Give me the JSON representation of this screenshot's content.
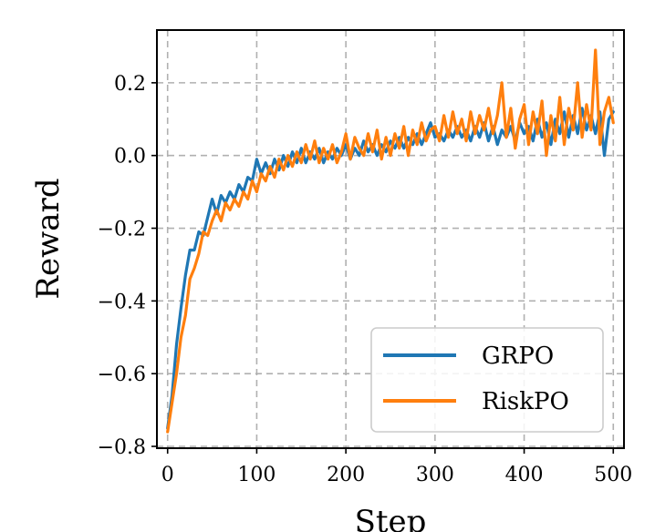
{
  "chart_data": {
    "type": "line",
    "title": "",
    "xlabel": "Step",
    "ylabel": "Reward",
    "xlim": [
      -12,
      512
    ],
    "ylim": [
      -0.805,
      0.345
    ],
    "xticks": [
      0,
      100,
      200,
      300,
      400,
      500
    ],
    "yticks": [
      -0.8,
      -0.6,
      -0.4,
      -0.2,
      0.0,
      0.2
    ],
    "xtick_labels": [
      "0",
      "100",
      "200",
      "300",
      "400",
      "500"
    ],
    "ytick_labels": [
      "−0.8",
      "−0.6",
      "−0.4",
      "−0.2",
      "0.0",
      "0.2"
    ],
    "grid": true,
    "legend_position": "bottom-right",
    "series": [
      {
        "name": "GRPO",
        "color": "#1f77b4",
        "points": [
          [
            0,
            -0.75
          ],
          [
            5,
            -0.66
          ],
          [
            10,
            -0.52
          ],
          [
            15,
            -0.42
          ],
          [
            20,
            -0.33
          ],
          [
            25,
            -0.26
          ],
          [
            30,
            -0.26
          ],
          [
            35,
            -0.21
          ],
          [
            40,
            -0.22
          ],
          [
            45,
            -0.17
          ],
          [
            50,
            -0.12
          ],
          [
            55,
            -0.16
          ],
          [
            60,
            -0.11
          ],
          [
            65,
            -0.13
          ],
          [
            70,
            -0.1
          ],
          [
            75,
            -0.12
          ],
          [
            80,
            -0.08
          ],
          [
            85,
            -0.1
          ],
          [
            90,
            -0.06
          ],
          [
            95,
            -0.07
          ],
          [
            100,
            -0.01
          ],
          [
            105,
            -0.05
          ],
          [
            110,
            -0.02
          ],
          [
            115,
            -0.05
          ],
          [
            120,
            -0.01
          ],
          [
            125,
            -0.04
          ],
          [
            130,
            0.0
          ],
          [
            135,
            -0.03
          ],
          [
            140,
            0.01
          ],
          [
            145,
            -0.02
          ],
          [
            150,
            0.02
          ],
          [
            155,
            -0.02
          ],
          [
            160,
            0.01
          ],
          [
            165,
            -0.01
          ],
          [
            170,
            0.02
          ],
          [
            175,
            -0.02
          ],
          [
            180,
            0.01
          ],
          [
            185,
            -0.01
          ],
          [
            190,
            0.02
          ],
          [
            195,
            0.0
          ],
          [
            200,
            0.03
          ],
          [
            205,
            -0.01
          ],
          [
            210,
            0.02
          ],
          [
            215,
            0.0
          ],
          [
            220,
            0.04
          ],
          [
            225,
            0.01
          ],
          [
            230,
            0.03
          ],
          [
            235,
            0.0
          ],
          [
            240,
            0.03
          ],
          [
            245,
            0.01
          ],
          [
            250,
            0.04
          ],
          [
            255,
            0.02
          ],
          [
            260,
            0.05
          ],
          [
            265,
            0.02
          ],
          [
            270,
            0.05
          ],
          [
            275,
            0.03
          ],
          [
            280,
            0.06
          ],
          [
            285,
            0.03
          ],
          [
            290,
            0.06
          ],
          [
            295,
            0.09
          ],
          [
            300,
            0.05
          ],
          [
            305,
            0.06
          ],
          [
            310,
            0.04
          ],
          [
            315,
            0.07
          ],
          [
            320,
            0.05
          ],
          [
            325,
            0.08
          ],
          [
            330,
            0.05
          ],
          [
            335,
            0.07
          ],
          [
            340,
            0.04
          ],
          [
            345,
            0.08
          ],
          [
            350,
            0.05
          ],
          [
            355,
            0.09
          ],
          [
            360,
            0.04
          ],
          [
            365,
            0.08
          ],
          [
            370,
            0.03
          ],
          [
            375,
            0.07
          ],
          [
            380,
            0.05
          ],
          [
            385,
            0.08
          ],
          [
            390,
            0.04
          ],
          [
            395,
            0.09
          ],
          [
            400,
            0.06
          ],
          [
            405,
            0.08
          ],
          [
            410,
            0.04
          ],
          [
            415,
            0.1
          ],
          [
            420,
            0.05
          ],
          [
            425,
            0.09
          ],
          [
            430,
            0.03
          ],
          [
            435,
            0.1
          ],
          [
            440,
            0.06
          ],
          [
            445,
            0.12
          ],
          [
            450,
            0.05
          ],
          [
            455,
            0.11
          ],
          [
            460,
            0.06
          ],
          [
            465,
            0.13
          ],
          [
            470,
            0.07
          ],
          [
            475,
            0.11
          ],
          [
            480,
            0.06
          ],
          [
            485,
            0.12
          ],
          [
            490,
            0.0
          ],
          [
            495,
            0.1
          ],
          [
            500,
            0.12
          ]
        ]
      },
      {
        "name": "RiskPO",
        "color": "#ff7f0e",
        "points": [
          [
            0,
            -0.76
          ],
          [
            5,
            -0.68
          ],
          [
            10,
            -0.6
          ],
          [
            15,
            -0.5
          ],
          [
            20,
            -0.44
          ],
          [
            25,
            -0.34
          ],
          [
            30,
            -0.31
          ],
          [
            35,
            -0.27
          ],
          [
            40,
            -0.21
          ],
          [
            45,
            -0.22
          ],
          [
            50,
            -0.18
          ],
          [
            55,
            -0.15
          ],
          [
            60,
            -0.18
          ],
          [
            65,
            -0.13
          ],
          [
            70,
            -0.15
          ],
          [
            75,
            -0.12
          ],
          [
            80,
            -0.14
          ],
          [
            85,
            -0.1
          ],
          [
            90,
            -0.12
          ],
          [
            95,
            -0.07
          ],
          [
            100,
            -0.1
          ],
          [
            105,
            -0.05
          ],
          [
            110,
            -0.07
          ],
          [
            115,
            -0.03
          ],
          [
            120,
            -0.06
          ],
          [
            125,
            -0.01
          ],
          [
            130,
            -0.04
          ],
          [
            135,
            0.0
          ],
          [
            140,
            -0.03
          ],
          [
            145,
            0.01
          ],
          [
            150,
            -0.02
          ],
          [
            155,
            0.03
          ],
          [
            160,
            -0.01
          ],
          [
            165,
            0.04
          ],
          [
            170,
            -0.02
          ],
          [
            175,
            0.02
          ],
          [
            180,
            -0.01
          ],
          [
            185,
            0.03
          ],
          [
            190,
            -0.02
          ],
          [
            195,
            0.01
          ],
          [
            200,
            0.06
          ],
          [
            205,
            -0.01
          ],
          [
            210,
            0.05
          ],
          [
            215,
            0.02
          ],
          [
            220,
            0.0
          ],
          [
            225,
            0.06
          ],
          [
            230,
            0.01
          ],
          [
            235,
            0.07
          ],
          [
            240,
            -0.01
          ],
          [
            245,
            0.05
          ],
          [
            250,
            0.0
          ],
          [
            255,
            0.06
          ],
          [
            260,
            0.02
          ],
          [
            265,
            0.08
          ],
          [
            270,
            0.0
          ],
          [
            275,
            0.07
          ],
          [
            280,
            0.03
          ],
          [
            285,
            0.09
          ],
          [
            290,
            0.04
          ],
          [
            295,
            0.07
          ],
          [
            300,
            0.08
          ],
          [
            305,
            0.04
          ],
          [
            310,
            0.11
          ],
          [
            315,
            0.05
          ],
          [
            320,
            0.12
          ],
          [
            325,
            0.06
          ],
          [
            330,
            0.1
          ],
          [
            335,
            0.04
          ],
          [
            340,
            0.12
          ],
          [
            345,
            0.06
          ],
          [
            350,
            0.11
          ],
          [
            355,
            0.07
          ],
          [
            360,
            0.13
          ],
          [
            365,
            0.06
          ],
          [
            370,
            0.11
          ],
          [
            375,
            0.2
          ],
          [
            380,
            0.05
          ],
          [
            385,
            0.13
          ],
          [
            390,
            0.02
          ],
          [
            395,
            0.1
          ],
          [
            400,
            0.14
          ],
          [
            405,
            0.03
          ],
          [
            410,
            0.12
          ],
          [
            415,
            0.06
          ],
          [
            420,
            0.15
          ],
          [
            425,
            0.0
          ],
          [
            430,
            0.11
          ],
          [
            435,
            0.04
          ],
          [
            440,
            0.16
          ],
          [
            445,
            0.03
          ],
          [
            450,
            0.13
          ],
          [
            455,
            0.07
          ],
          [
            460,
            0.2
          ],
          [
            465,
            0.05
          ],
          [
            470,
            0.14
          ],
          [
            475,
            0.07
          ],
          [
            480,
            0.29
          ],
          [
            485,
            0.03
          ],
          [
            490,
            0.12
          ],
          [
            495,
            0.16
          ],
          [
            500,
            0.09
          ]
        ]
      }
    ]
  }
}
